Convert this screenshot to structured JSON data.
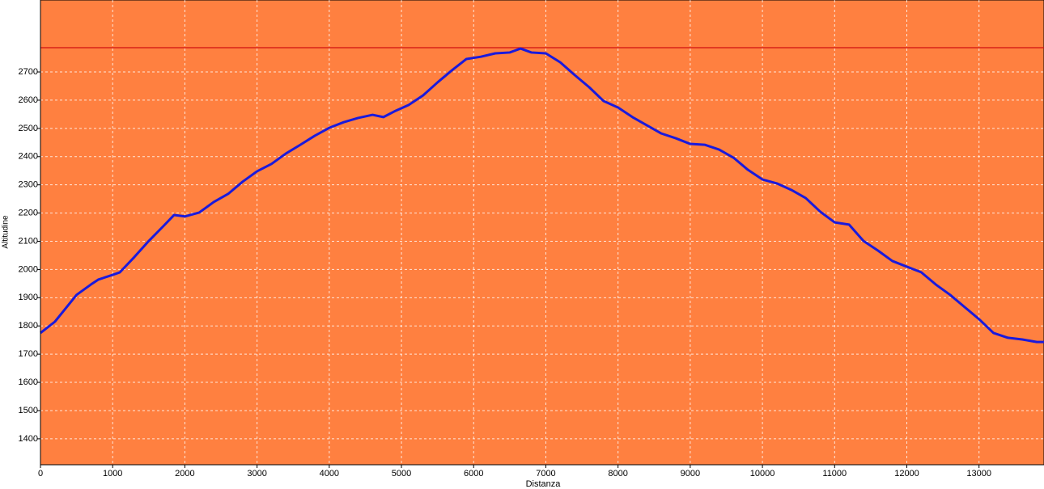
{
  "chart_data": {
    "type": "line",
    "x_label": "Distanza",
    "y_label": "Altitudine",
    "x": [
      0,
      200,
      500,
      700,
      800,
      1000,
      1100,
      1300,
      1500,
      1700,
      1850,
      2000,
      2200,
      2400,
      2600,
      2800,
      3000,
      3200,
      3400,
      3600,
      3800,
      4000,
      4200,
      4400,
      4600,
      4750,
      4900,
      5100,
      5300,
      5500,
      5700,
      5900,
      6100,
      6300,
      6500,
      6650,
      6800,
      7000,
      7200,
      7400,
      7600,
      7800,
      8000,
      8200,
      8400,
      8600,
      8800,
      9000,
      9200,
      9400,
      9600,
      9800,
      10000,
      10200,
      10400,
      10600,
      10800,
      11000,
      11200,
      11400,
      11600,
      11800,
      12000,
      12200,
      12400,
      12600,
      12800,
      13000,
      13200,
      13400,
      13600,
      13800,
      13900
    ],
    "series": [
      {
        "name": "Altitudine",
        "color": "#1a1adc",
        "values": [
          1775,
          1815,
          1910,
          1947,
          1964,
          1981,
          1990,
          2044,
          2101,
          2153,
          2193,
          2188,
          2202,
          2239,
          2268,
          2311,
          2348,
          2374,
          2411,
          2442,
          2474,
          2502,
          2522,
          2537,
          2548,
          2540,
          2560,
          2583,
          2617,
          2663,
          2706,
          2746,
          2754,
          2766,
          2769,
          2783,
          2769,
          2766,
          2734,
          2689,
          2646,
          2597,
          2574,
          2540,
          2511,
          2482,
          2465,
          2445,
          2442,
          2425,
          2396,
          2353,
          2319,
          2305,
          2282,
          2253,
          2205,
          2167,
          2159,
          2101,
          2067,
          2030,
          2010,
          1990,
          1947,
          1910,
          1867,
          1824,
          1775,
          1758,
          1752,
          1743,
          1743
        ]
      }
    ],
    "xlim": [
      0,
      13900
    ],
    "ylim": [
      1308,
      2955
    ],
    "xticks": [
      0,
      1000,
      2000,
      3000,
      4000,
      5000,
      6000,
      7000,
      8000,
      9000,
      10000,
      11000,
      12000,
      13000
    ],
    "yticks": [
      1400,
      1500,
      1600,
      1700,
      1800,
      1900,
      2000,
      2100,
      2200,
      2300,
      2400,
      2500,
      2600,
      2700
    ],
    "reference_line": 2786,
    "reference_color": "#d01010",
    "background": "#ff8040",
    "grid": true
  }
}
